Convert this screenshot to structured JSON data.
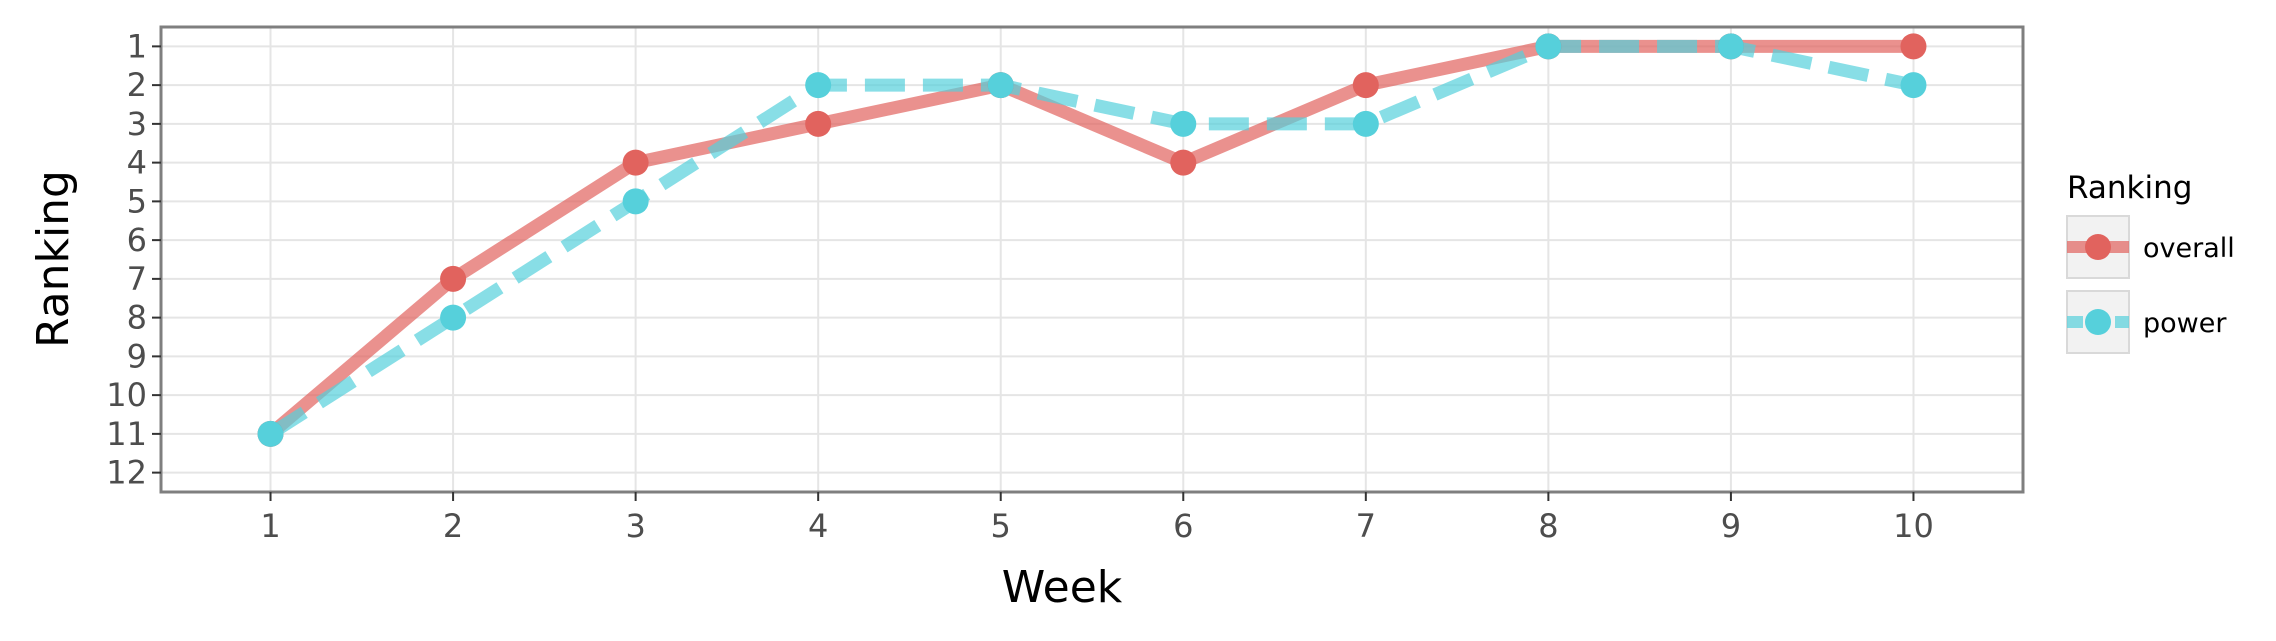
{
  "chart_data": {
    "type": "line",
    "title": "",
    "xlabel": "Week",
    "ylabel": "Ranking",
    "x": [
      1,
      2,
      3,
      4,
      5,
      6,
      7,
      8,
      9,
      10
    ],
    "x_tick_labels": [
      "1",
      "2",
      "3",
      "4",
      "5",
      "6",
      "7",
      "8",
      "9",
      "10"
    ],
    "y_tick_labels": [
      "1",
      "2",
      "3",
      "4",
      "5",
      "6",
      "7",
      "8",
      "9",
      "10",
      "11",
      "12"
    ],
    "xlim": [
      0.4,
      10.6
    ],
    "ylim": [
      12.5,
      0.5
    ],
    "y_reversed": true,
    "grid": true,
    "legend": {
      "title": "Ranking",
      "position": "right"
    },
    "series": [
      {
        "name": "overall",
        "values": [
          11,
          7,
          4,
          3,
          2,
          4,
          2,
          1,
          1,
          1
        ],
        "color": "#E1635E",
        "line_style": "solid"
      },
      {
        "name": "power",
        "values": [
          11,
          8,
          5,
          2,
          2,
          3,
          3,
          1,
          1,
          2
        ],
        "color": "#56D0DB",
        "line_style": "dashed"
      }
    ]
  }
}
